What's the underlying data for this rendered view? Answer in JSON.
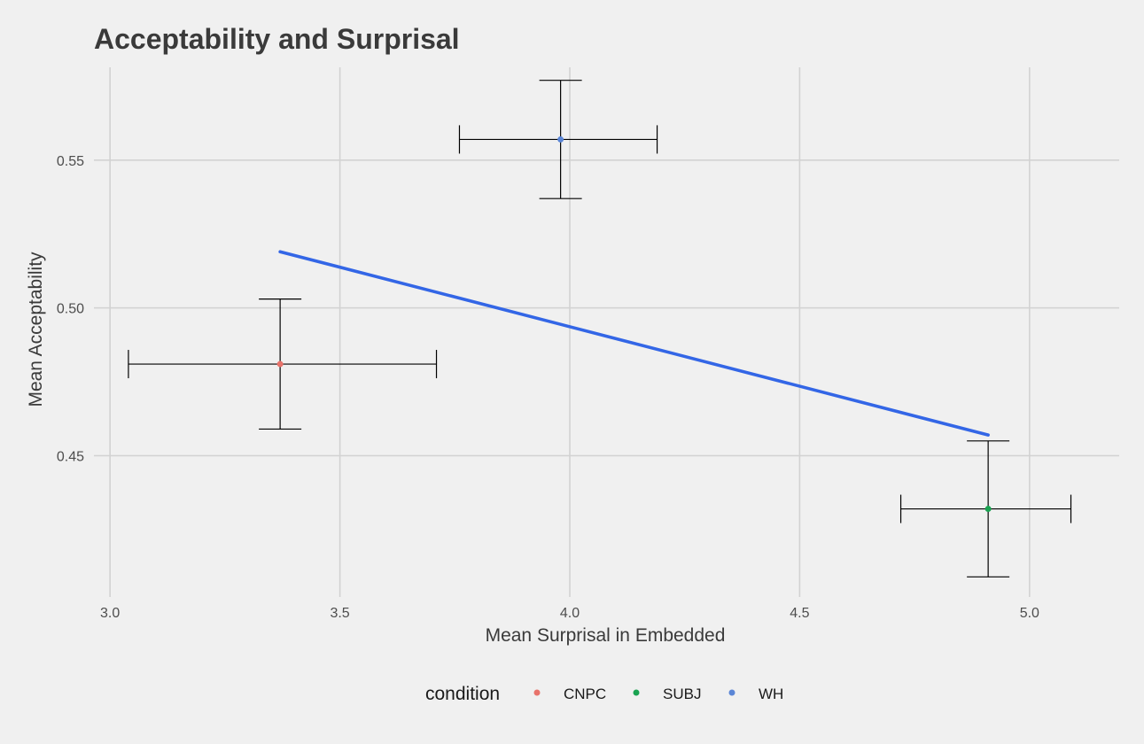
{
  "chart_data": {
    "type": "scatter",
    "title": "Acceptability and Surprisal",
    "xlabel": "Mean Surprisal in Embedded",
    "ylabel": "Mean Acceptability",
    "xlim": [
      2.965,
      5.195
    ],
    "ylim": [
      0.4022,
      0.5814
    ],
    "x_ticks": [
      3.0,
      3.5,
      4.0,
      4.5,
      5.0
    ],
    "x_tick_labels": [
      "3.0",
      "3.5",
      "4.0",
      "4.5",
      "5.0"
    ],
    "y_ticks": [
      0.45,
      0.5,
      0.55
    ],
    "y_tick_labels": [
      "0.45",
      "0.50",
      "0.55"
    ],
    "grid": true,
    "legend_position": "bottom",
    "legend_title": "condition",
    "series": [
      {
        "name": "CNPC",
        "color": "#e8736b",
        "x": 3.37,
        "y": 0.481,
        "x_err": [
          3.04,
          3.71
        ],
        "y_err": [
          0.459,
          0.503
        ]
      },
      {
        "name": "SUBJ",
        "color": "#1aa351",
        "x": 4.91,
        "y": 0.432,
        "x_err": [
          4.72,
          5.09
        ],
        "y_err": [
          0.409,
          0.455
        ]
      },
      {
        "name": "WH",
        "color": "#5b86d6",
        "x": 3.98,
        "y": 0.557,
        "x_err": [
          3.76,
          4.19
        ],
        "y_err": [
          0.537,
          0.577
        ]
      }
    ],
    "trend_line": {
      "color": "#3366e6",
      "x": [
        3.37,
        4.91
      ],
      "y": [
        0.519,
        0.457
      ]
    }
  }
}
